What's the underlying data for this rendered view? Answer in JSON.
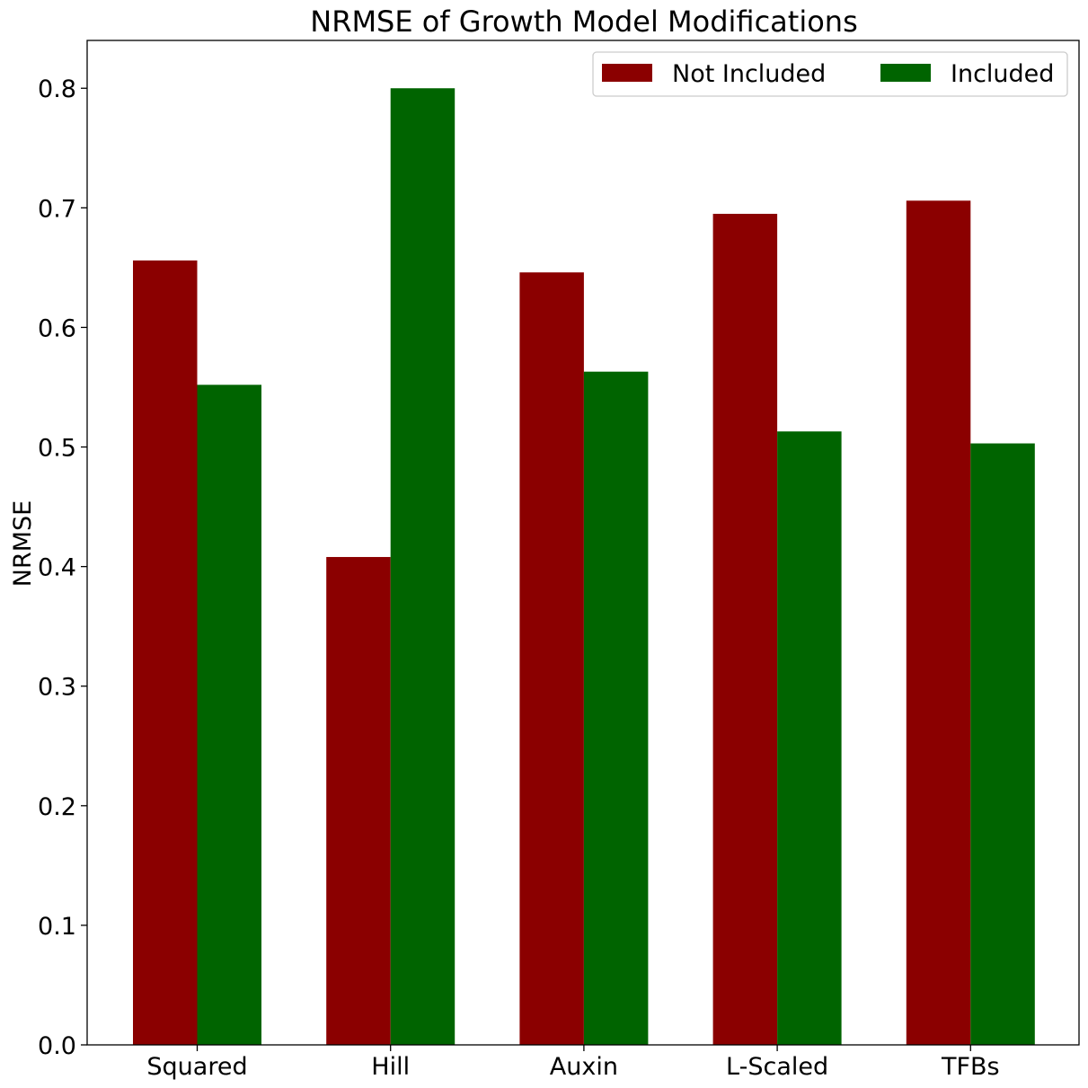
{
  "chart_data": {
    "type": "bar",
    "title": "NRMSE of Growth Model Modifications",
    "xlabel": "",
    "ylabel": "NRMSE",
    "categories": [
      "Squared",
      "Hill",
      "Auxin",
      "L-Scaled",
      "TFBs"
    ],
    "series": [
      {
        "name": "Not Included",
        "color": "#8b0000",
        "values": [
          0.656,
          0.408,
          0.646,
          0.695,
          0.706
        ]
      },
      {
        "name": "Included",
        "color": "#006400",
        "values": [
          0.552,
          0.8,
          0.563,
          0.513,
          0.503
        ]
      }
    ],
    "ylim": [
      0,
      0.84
    ],
    "yticks": [
      0.0,
      0.1,
      0.2,
      0.3,
      0.4,
      0.5,
      0.6,
      0.7,
      0.8
    ],
    "ytick_labels": [
      "0.0",
      "0.1",
      "0.2",
      "0.3",
      "0.4",
      "0.5",
      "0.6",
      "0.7",
      "0.8"
    ],
    "grid": false,
    "legend_position": "top-right"
  }
}
